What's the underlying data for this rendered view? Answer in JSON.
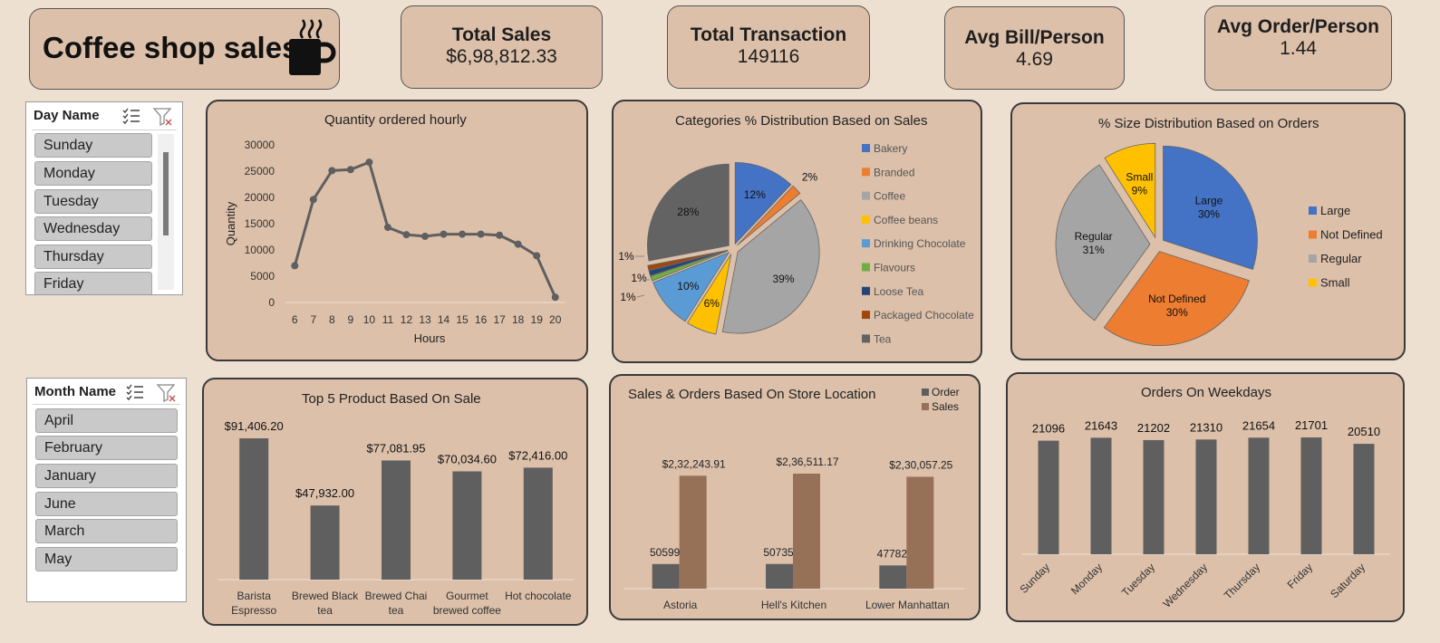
{
  "header": {
    "title": "Coffee shop sales",
    "icon": "coffee-mug-icon"
  },
  "kpis": [
    {
      "label": "Total Sales",
      "value": "$6,98,812.33"
    },
    {
      "label": "Total Transaction",
      "value": "149116"
    },
    {
      "label": "Avg Bill/Person",
      "value": "4.69"
    },
    {
      "label": "Avg Order/Person",
      "value": "1.44"
    }
  ],
  "slicers": {
    "day": {
      "header": "Day Name",
      "items": [
        "Sunday",
        "Monday",
        "Tuesday",
        "Wednesday",
        "Thursday",
        "Friday"
      ]
    },
    "month": {
      "header": "Month Name",
      "items": [
        "April",
        "February",
        "January",
        "June",
        "March",
        "May"
      ]
    }
  },
  "colors": {
    "gray": "#5f5f5f",
    "brown": "#967158",
    "card": "#dcc0aa",
    "background": "#ede0d0"
  },
  "chart_data": [
    {
      "id": "hourly",
      "type": "line",
      "title": "Quantity ordered hourly",
      "xlabel": "Hours",
      "ylabel": "Quantity",
      "x": [
        6,
        7,
        8,
        9,
        10,
        11,
        12,
        13,
        14,
        15,
        16,
        17,
        18,
        19,
        20
      ],
      "values": [
        7000,
        19600,
        25100,
        25300,
        26700,
        14300,
        12900,
        12600,
        13000,
        13000,
        13000,
        12800,
        11100,
        8900,
        1000
      ],
      "yticks": [
        0,
        5000,
        10000,
        15000,
        20000,
        25000,
        30000
      ],
      "ylim": [
        0,
        30000
      ]
    },
    {
      "id": "categories",
      "type": "pie",
      "title": "Categories % Distribution Based on Sales",
      "labels": [
        "Bakery",
        "Branded",
        "Coffee",
        "Coffee beans",
        "Drinking Chocolate",
        "Flavours",
        "Loose Tea",
        "Packaged Chocolate",
        "Tea"
      ],
      "values": [
        12,
        2,
        39,
        6,
        10,
        1,
        1,
        1,
        28
      ],
      "data_labels": [
        "12%",
        "2%",
        "39%",
        "6%",
        "10%",
        "1%",
        "1%",
        "1%",
        "28%"
      ],
      "colors": [
        "#4472c4",
        "#ed7d31",
        "#a5a5a5",
        "#ffc000",
        "#5b9bd5",
        "#70ad47",
        "#264478",
        "#9e480e",
        "#636363"
      ],
      "legend": "right"
    },
    {
      "id": "sizes",
      "type": "pie",
      "title": "% Size Distribution Based on Orders",
      "labels": [
        "Large",
        "Not Defined",
        "Regular",
        "Small"
      ],
      "values": [
        30,
        30,
        31,
        9
      ],
      "data_labels": [
        [
          "Large",
          "30%"
        ],
        [
          "Not Defined",
          "30%"
        ],
        [
          "Regular",
          "31%"
        ],
        [
          "Small",
          "9%"
        ]
      ],
      "colors": [
        "#4472c4",
        "#ed7d31",
        "#a5a5a5",
        "#ffc000"
      ],
      "legend": "right"
    },
    {
      "id": "top5",
      "type": "bar",
      "title": "Top 5 Product Based On Sale",
      "categories": [
        [
          "Barista",
          "Espresso"
        ],
        [
          "Brewed Black",
          "tea"
        ],
        [
          "Brewed Chai",
          "tea"
        ],
        [
          "Gourmet",
          "brewed coffee"
        ],
        [
          "Hot chocolate"
        ]
      ],
      "values": [
        91406.2,
        47932.0,
        77081.95,
        70034.6,
        72416.0
      ],
      "data_labels": [
        "$91,406.20",
        "$47,932.00",
        "$77,081.95",
        "$70,034.60",
        "$72,416.00"
      ]
    },
    {
      "id": "location",
      "type": "bar",
      "title": "Sales & Orders Based On Store Location",
      "categories": [
        "Astoria",
        "Hell's Kitchen",
        "Lower Manhattan"
      ],
      "series": [
        {
          "name": "Order",
          "values": [
            50599,
            50735,
            47782
          ],
          "data_labels": [
            "50599",
            "50735",
            "47782"
          ]
        },
        {
          "name": "Sales",
          "values": [
            232243.91,
            236511.17,
            230057.25
          ],
          "data_labels": [
            "$2,32,243.91",
            "$2,36,511.17",
            "$2,30,057.25"
          ]
        }
      ],
      "legend": "top-right"
    },
    {
      "id": "weekdays",
      "type": "bar",
      "title": "Orders On Weekdays",
      "categories": [
        "Sunday",
        "Monday",
        "Tuesday",
        "Wednesday",
        "Thursday",
        "Friday",
        "Saturday"
      ],
      "values": [
        21096,
        21643,
        21202,
        21310,
        21654,
        21701,
        20510
      ],
      "data_labels": [
        "21096",
        "21643",
        "21202",
        "21310",
        "21654",
        "21701",
        "20510"
      ]
    }
  ]
}
